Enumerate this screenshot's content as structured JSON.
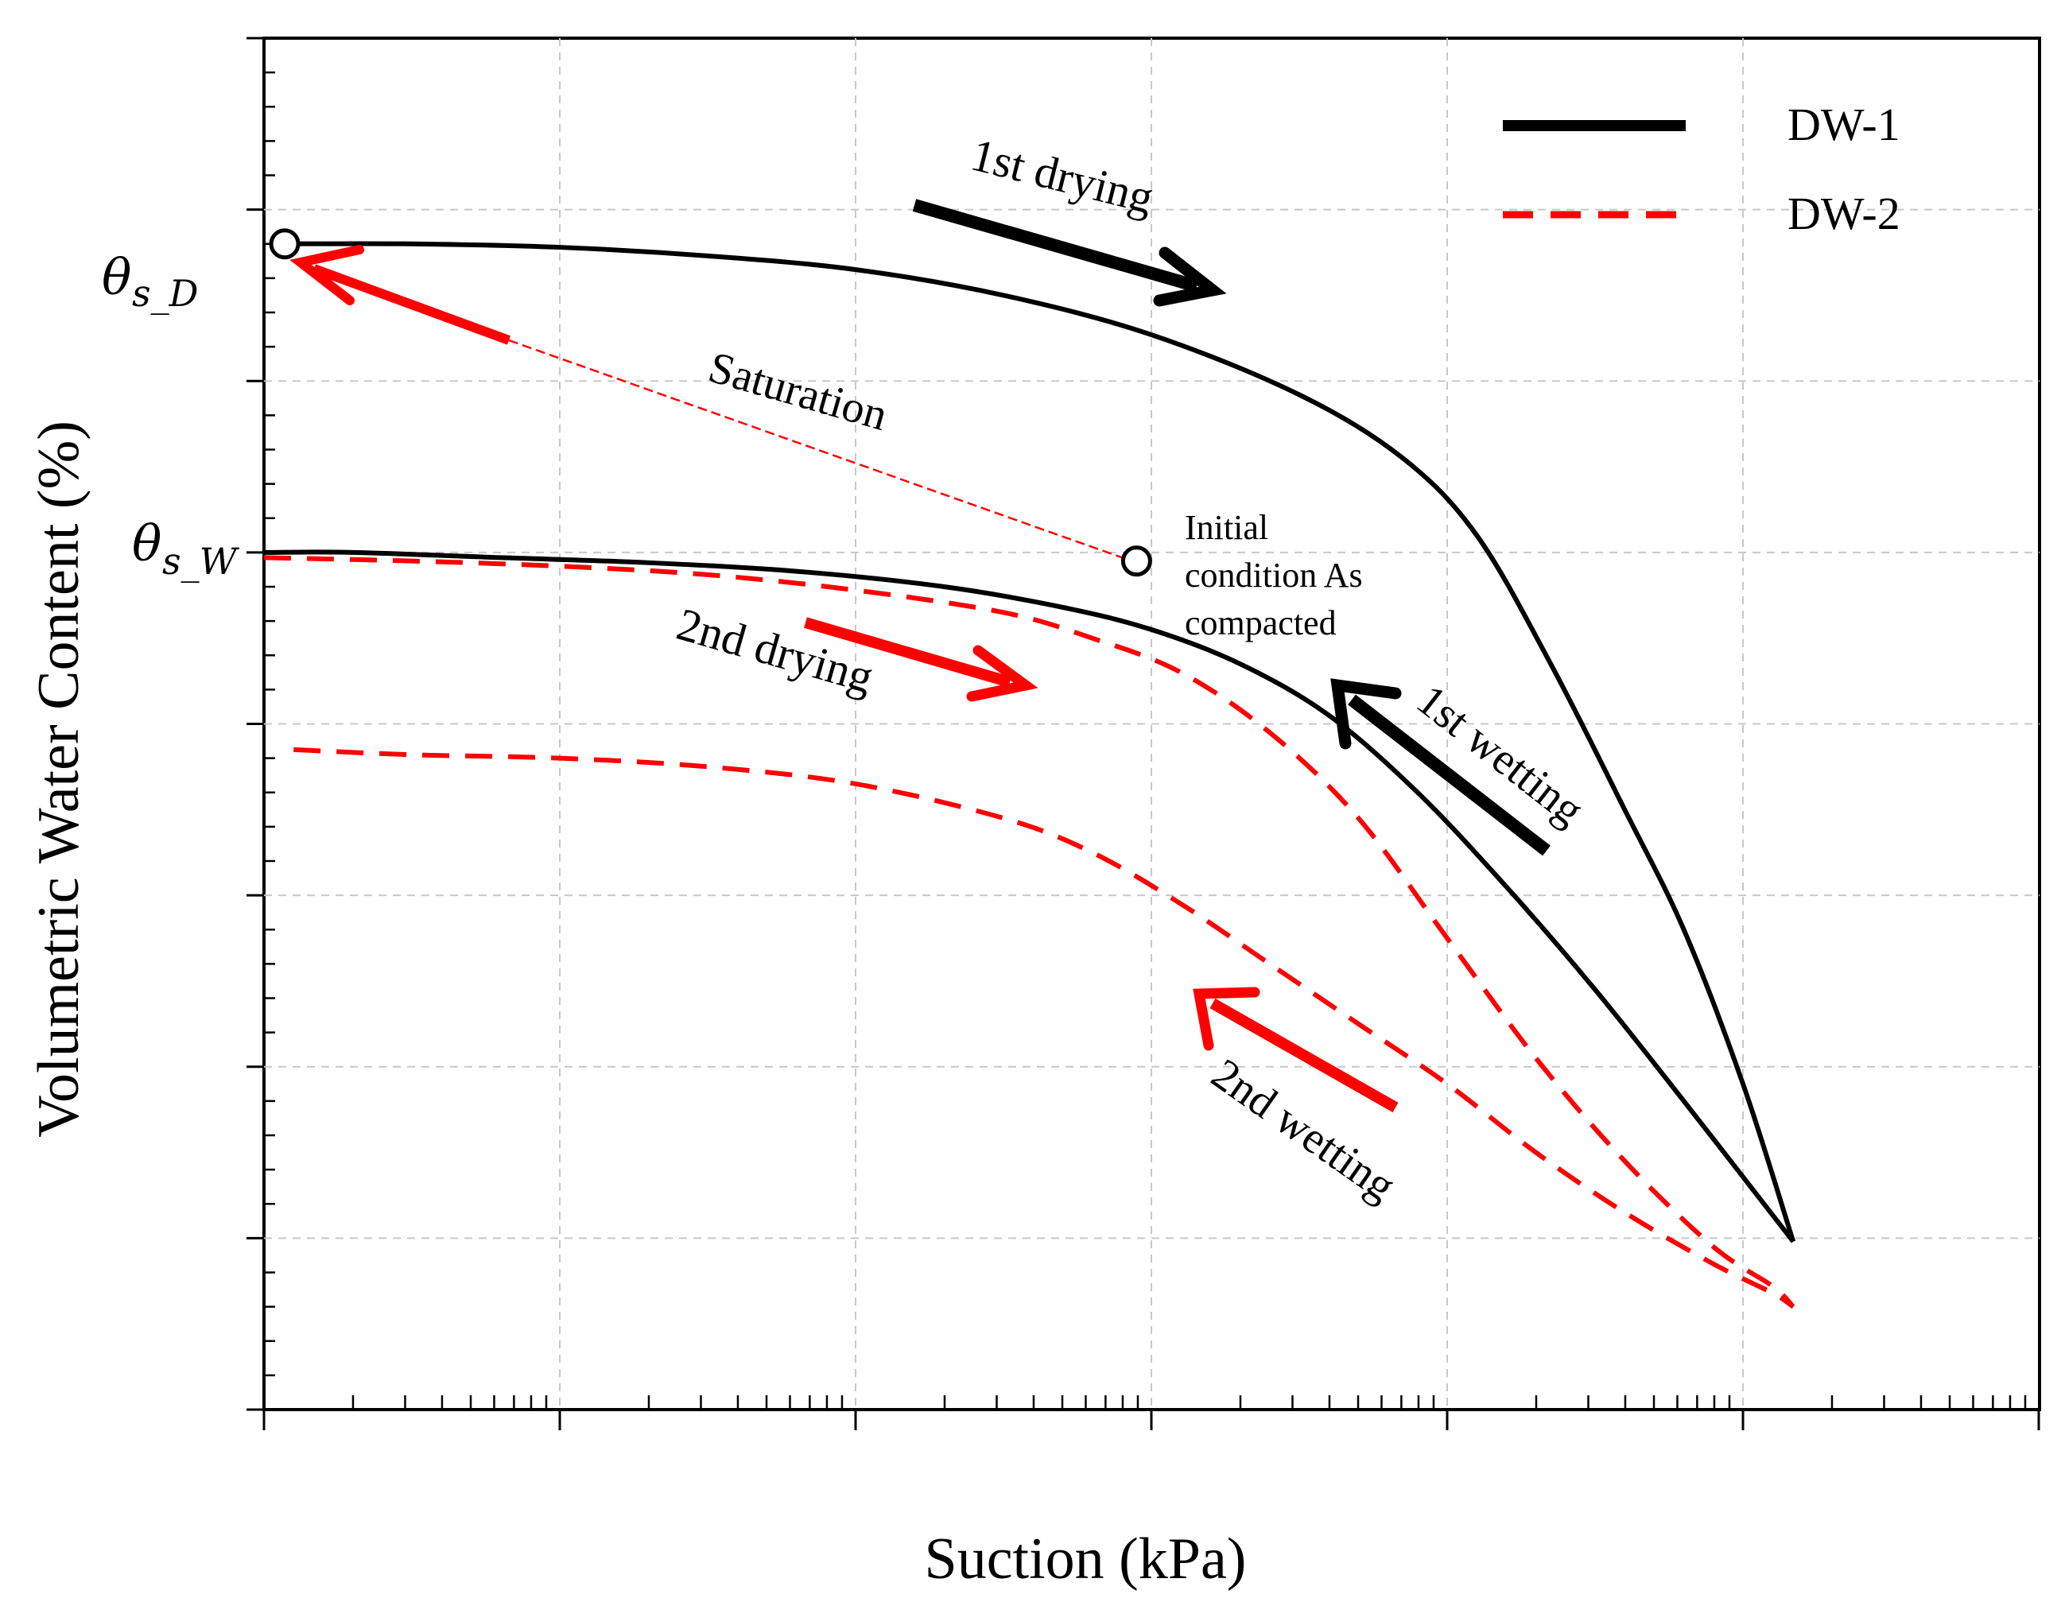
{
  "colors": {
    "dw1": "#000000",
    "dw2": "#ff0000",
    "grid": "#c8c8c8",
    "axis": "#000000"
  },
  "chart_data": {
    "type": "line",
    "title": "",
    "xlabel": "Suction (kPa)",
    "ylabel": "Volumetric Water Content (%)",
    "x_scale": "log",
    "x_decades": [
      0,
      1,
      2,
      3,
      4,
      5,
      6
    ],
    "xlim": [
      0,
      6.1
    ],
    "ylim": [
      0,
      8
    ],
    "x_tick_labels_shown": false,
    "y_tick_labels_shown": false,
    "grid": true,
    "legend": {
      "position": "top-right",
      "entries": [
        {
          "name": "DW-1",
          "style": "solid",
          "color": "#000000"
        },
        {
          "name": "DW-2",
          "style": "dashed",
          "color": "#ff0000"
        }
      ]
    },
    "y_annotations": [
      {
        "symbol": "θ",
        "subscript": "s_D",
        "y": 6.8
      },
      {
        "symbol": "θ",
        "subscript": "s_W",
        "y": 5.0
      }
    ],
    "series": [
      {
        "name": "DW-1 1st drying",
        "legend": "DW-1",
        "style": "solid",
        "x": [
          0.07,
          0.5,
          1.0,
          1.5,
          2.0,
          2.5,
          3.0,
          3.5,
          3.85,
          4.1,
          4.35,
          4.6,
          4.8,
          5.0,
          5.17
        ],
        "y": [
          6.8,
          6.8,
          6.78,
          6.73,
          6.65,
          6.5,
          6.27,
          5.92,
          5.55,
          5.1,
          4.35,
          3.5,
          2.8,
          1.9,
          0.98
        ]
      },
      {
        "name": "DW-1 1st wetting",
        "legend": "DW-1",
        "style": "solid",
        "x": [
          0.0,
          0.3,
          0.8,
          1.3,
          1.8,
          2.3,
          2.7,
          3.0,
          3.3,
          3.6,
          3.9,
          4.2,
          4.5,
          4.8,
          5.17
        ],
        "y": [
          5.0,
          5.0,
          4.97,
          4.94,
          4.89,
          4.8,
          4.68,
          4.55,
          4.35,
          4.05,
          3.6,
          3.05,
          2.45,
          1.8,
          0.98
        ]
      },
      {
        "name": "DW-2 2nd drying",
        "legend": "DW-2",
        "style": "dashed",
        "x": [
          0.0,
          0.5,
          1.0,
          1.5,
          2.0,
          2.5,
          2.8,
          3.1,
          3.4,
          3.7,
          4.0,
          4.3,
          4.6,
          4.9,
          5.1,
          5.17
        ],
        "y": [
          4.97,
          4.95,
          4.92,
          4.87,
          4.78,
          4.65,
          4.5,
          4.3,
          3.95,
          3.45,
          2.75,
          2.05,
          1.45,
          0.95,
          0.72,
          0.6
        ]
      },
      {
        "name": "DW-2 2nd wetting",
        "legend": "DW-2",
        "style": "dashed",
        "x": [
          0.1,
          0.5,
          1.0,
          1.5,
          2.0,
          2.5,
          2.8,
          3.1,
          3.4,
          3.7,
          4.0,
          4.3,
          4.6,
          4.9,
          5.1,
          5.17
        ],
        "y": [
          3.85,
          3.82,
          3.8,
          3.75,
          3.65,
          3.45,
          3.25,
          2.95,
          2.6,
          2.25,
          1.9,
          1.5,
          1.15,
          0.85,
          0.68,
          0.6
        ]
      }
    ],
    "initial_condition": {
      "x": 2.95,
      "y": 4.95
    },
    "saturation_point": {
      "x": 0.07,
      "y": 6.8
    },
    "annotations": [
      {
        "text": "1st drying",
        "key": "first_drying"
      },
      {
        "text": "Saturation",
        "key": "saturation"
      },
      {
        "text": "Initial condition As compacted",
        "key": "initial"
      },
      {
        "text": "2nd drying",
        "key": "second_drying"
      },
      {
        "text": "1st wetting",
        "key": "first_wetting"
      },
      {
        "text": "2nd wetting",
        "key": "second_wetting"
      }
    ]
  },
  "labels": {
    "first_drying": "1st drying",
    "saturation": "Saturation",
    "initial_line1": "Initial",
    "initial_line2": "condition As",
    "initial_line3": "compacted",
    "second_drying": "2nd drying",
    "first_wetting": "1st wetting",
    "second_wetting": "2nd wetting",
    "theta_symbol": "θ",
    "theta_sub_d": "s_D",
    "theta_sub_w": "s_W"
  }
}
